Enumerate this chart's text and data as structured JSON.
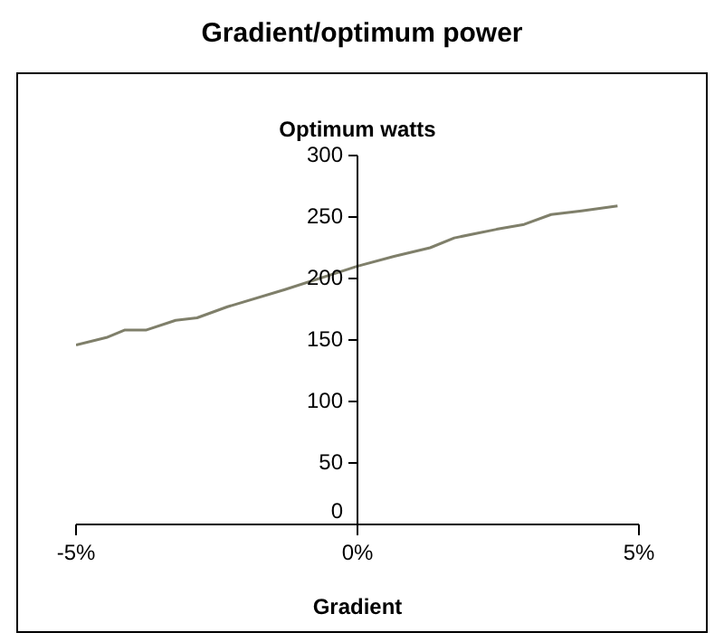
{
  "chart_data": {
    "type": "line",
    "title": "Gradient/optimum power",
    "xlabel": "Gradient",
    "ylabel": "Optimum watts",
    "x": [
      -5,
      -4.46,
      -4.14,
      -3.76,
      -3.23,
      -2.85,
      -2.31,
      -1.29,
      0,
      0.65,
      1.29,
      1.72,
      2.47,
      2.96,
      3.44,
      3.98,
      4.62
    ],
    "series": [
      {
        "color": "#7f7f6a",
        "values": [
          146,
          152,
          158,
          158,
          166,
          168,
          177,
          191,
          210,
          218,
          225,
          233,
          240,
          244,
          252,
          255,
          259
        ]
      }
    ],
    "xlim": [
      -5,
      5
    ],
    "xticks": [
      {
        "value": -5,
        "label": "-5%"
      },
      {
        "value": 0,
        "label": "0%"
      },
      {
        "value": 5,
        "label": "5%"
      }
    ],
    "ylim": [
      0,
      300
    ],
    "yticks": [
      0,
      50,
      100,
      150,
      200,
      250,
      300
    ],
    "legend": false,
    "marker": "none",
    "line_style": "solid"
  }
}
